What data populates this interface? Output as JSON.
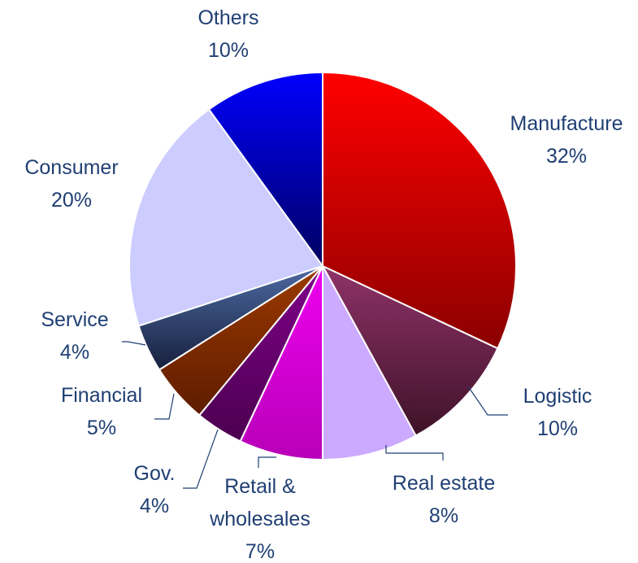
{
  "chart_data": {
    "type": "pie",
    "start_angle_deg": 0,
    "direction": "clockwise",
    "slices": [
      {
        "name": "Manufacture",
        "value": 32,
        "label": "32%",
        "color_top": "#ff0000",
        "color_bottom": "#8b0000"
      },
      {
        "name": "Logistic",
        "value": 10,
        "label": "10%",
        "color_top": "#8f3368",
        "color_bottom": "#3e1228"
      },
      {
        "name": "Real estate",
        "value": 8,
        "label": "8%",
        "color_top": "#ccaaff",
        "color_bottom": "#ccaaff"
      },
      {
        "name": "Retail &\nwholesales",
        "value": 7,
        "label": "7%",
        "color_top": "#ee00ee",
        "color_bottom": "#b800b8"
      },
      {
        "name": "Gov.",
        "value": 4,
        "label": "4%",
        "color_top": "#80008a",
        "color_bottom": "#4b0050"
      },
      {
        "name": "Financial",
        "value": 5,
        "label": "5%",
        "color_top": "#9b3a00",
        "color_bottom": "#5e1c00"
      },
      {
        "name": "Service",
        "value": 4,
        "label": "4%",
        "color_top": "#4d6aa3",
        "color_bottom": "#17203d"
      },
      {
        "name": "Consumer",
        "value": 20,
        "label": "20%",
        "color_top": "#ccccff",
        "color_bottom": "#ccccff"
      },
      {
        "name": "Others",
        "value": 10,
        "label": "10%",
        "color_top": "#0000ff",
        "color_bottom": "#000060"
      }
    ],
    "label_color": "#1f3f73",
    "legend": "none"
  }
}
